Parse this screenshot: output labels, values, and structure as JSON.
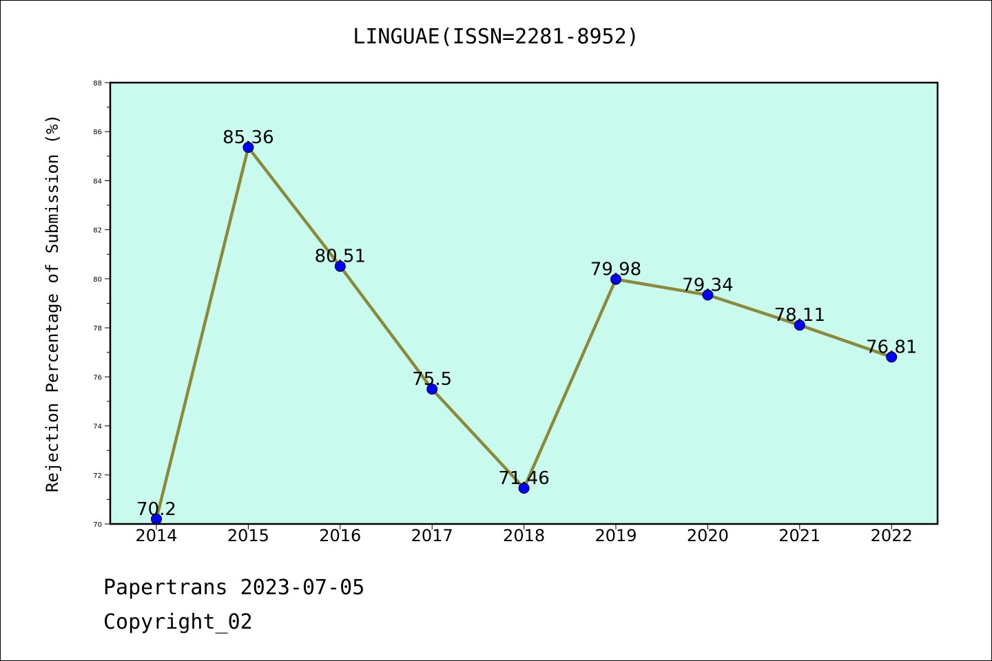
{
  "title": "LINGUAE(ISSN=2281-8952)",
  "footer": {
    "date_line": "Papertrans 2023-07-05",
    "copyright_line": "Copyright_02"
  },
  "colors": {
    "plot_background": "#c8fbee",
    "line": "#8b8a3a",
    "marker": "#0000ff"
  },
  "chart_data": {
    "type": "line",
    "title": "LINGUAE(ISSN=2281-8952)",
    "xlabel": "",
    "ylabel": "Rejection Percentage of Submission (%)",
    "categories": [
      "2014",
      "2015",
      "2016",
      "2017",
      "2018",
      "2019",
      "2020",
      "2021",
      "2022"
    ],
    "series": [
      {
        "values": [
          70.2,
          85.36,
          80.51,
          75.5,
          71.46,
          79.98,
          79.34,
          78.11,
          76.81
        ],
        "labels": [
          "70.2",
          "85.36",
          "80.51",
          "75.5",
          "71.46",
          "79.98",
          "79.34",
          "78.11",
          "76.81"
        ]
      }
    ],
    "ylim": [
      70,
      88
    ],
    "yticks": [
      "70",
      "72",
      "74",
      "76",
      "78",
      "80",
      "82",
      "84",
      "86",
      "88"
    ],
    "grid": false,
    "legend": "none"
  }
}
